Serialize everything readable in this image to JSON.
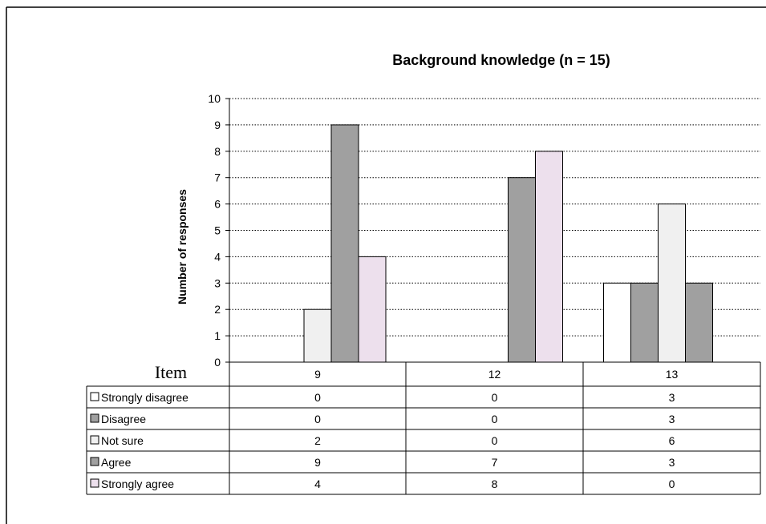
{
  "chart_data": {
    "type": "bar",
    "title": "Background knowledge (n = 15)",
    "ylabel": "Number of responses",
    "xlabel": "Item",
    "ylim": [
      0,
      10
    ],
    "yticks": [
      0,
      1,
      2,
      3,
      4,
      5,
      6,
      7,
      8,
      9,
      10
    ],
    "grid": true,
    "legend_placement": "table-left",
    "categories": [
      "9",
      "12",
      "13"
    ],
    "series": [
      {
        "name": "Strongly disagree",
        "values": [
          0,
          0,
          3
        ],
        "color": "#ffffff"
      },
      {
        "name": "Disagree",
        "values": [
          0,
          0,
          3
        ],
        "color": "#a0a0a0"
      },
      {
        "name": "Not sure",
        "values": [
          2,
          0,
          6
        ],
        "color": "#f0f0f0"
      },
      {
        "name": "Agree",
        "values": [
          9,
          7,
          3
        ],
        "color": "#a0a0a0"
      },
      {
        "name": "Strongly agree",
        "values": [
          4,
          8,
          0
        ],
        "color": "#ede0ed"
      }
    ],
    "table_values": [
      [
        "0",
        "0",
        "3"
      ],
      [
        "0",
        "0",
        "3"
      ],
      [
        "2",
        "0",
        "6"
      ],
      [
        "9",
        "7",
        "3"
      ],
      [
        "4",
        "8",
        "0"
      ]
    ]
  }
}
